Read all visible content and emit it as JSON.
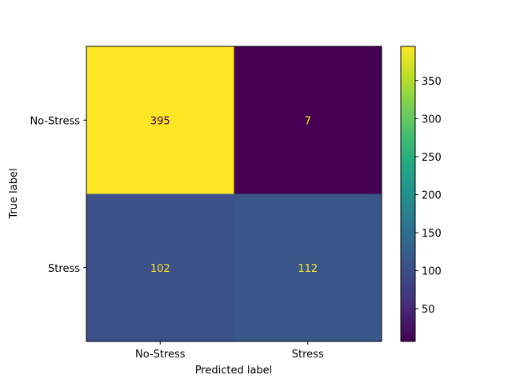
{
  "chart_data": {
    "type": "heatmap",
    "title": "",
    "xlabel": "Predicted label",
    "ylabel": "True label",
    "x_categories": [
      "No-Stress",
      "Stress"
    ],
    "y_categories": [
      "No-Stress",
      "Stress"
    ],
    "matrix": [
      [
        395,
        7
      ],
      [
        102,
        112
      ]
    ],
    "colormap": "viridis",
    "color_range": [
      7,
      395
    ],
    "colorbar_ticks": [
      50,
      100,
      150,
      200,
      250,
      300,
      350
    ],
    "grid": false,
    "colorbar_placement": "right",
    "text_color_light": "#fde725",
    "text_color_dark": "#440154"
  }
}
